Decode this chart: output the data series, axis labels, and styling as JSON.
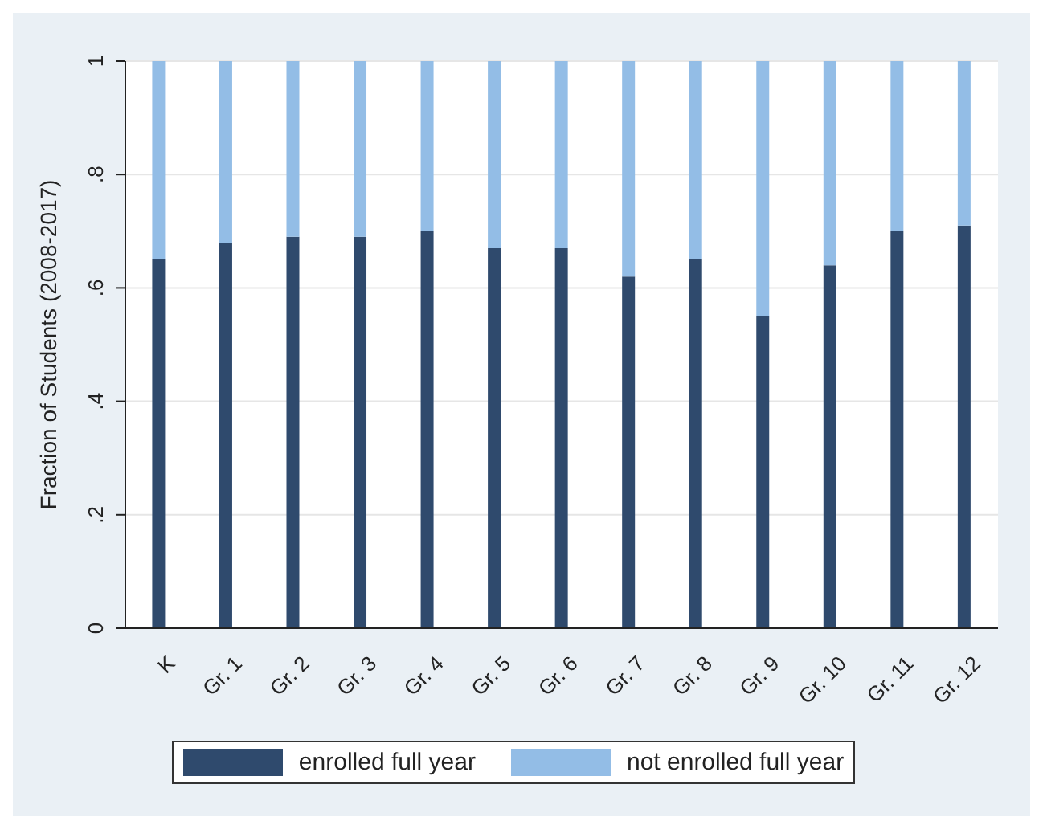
{
  "chart_data": {
    "type": "bar",
    "ylabel": "Fraction of Students (2008-2017)",
    "categories": [
      "K",
      "Gr. 1",
      "Gr. 2",
      "Gr. 3",
      "Gr. 4",
      "Gr. 5",
      "Gr. 6",
      "Gr. 7",
      "Gr. 8",
      "Gr. 9",
      "Gr. 10",
      "Gr. 11",
      "Gr. 12"
    ],
    "series": [
      {
        "name": "enrolled full year",
        "color": "#2f4a6d",
        "values": [
          0.65,
          0.68,
          0.69,
          0.69,
          0.7,
          0.67,
          0.67,
          0.62,
          0.65,
          0.55,
          0.64,
          0.7,
          0.71
        ]
      },
      {
        "name": "not enrolled full year",
        "color": "#93bde6",
        "values": [
          0.35,
          0.32,
          0.31,
          0.31,
          0.3,
          0.33,
          0.33,
          0.38,
          0.35,
          0.45,
          0.36,
          0.3,
          0.29
        ]
      }
    ],
    "stacked": true,
    "ylim": [
      0,
      1
    ],
    "yticks": [
      0,
      {
        "value": 0.2,
        "label": ".2"
      },
      {
        "value": 0.4,
        "label": ".4"
      },
      {
        "value": 0.6,
        "label": ".6"
      },
      {
        "value": 0.8,
        "label": ".8"
      },
      1
    ],
    "grid": "y",
    "legend": "bottom"
  }
}
